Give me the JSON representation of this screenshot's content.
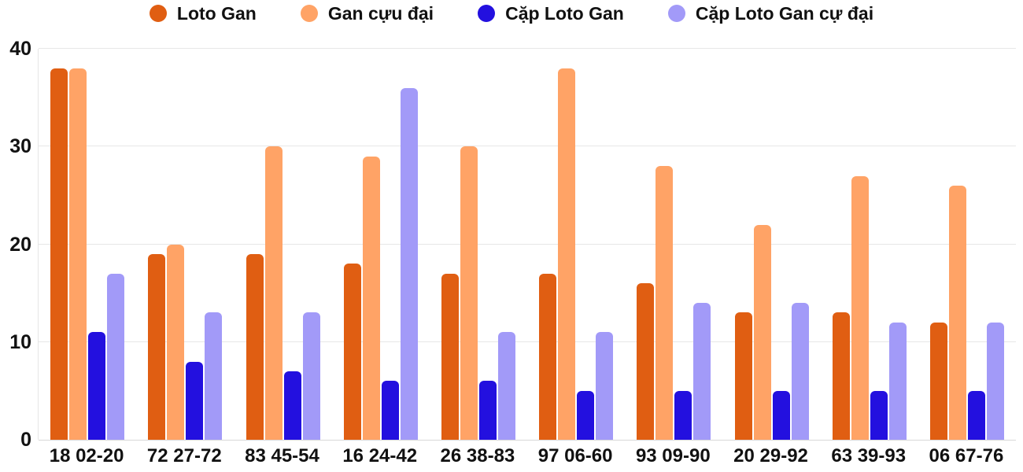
{
  "chart_data": {
    "type": "bar",
    "title": "",
    "categories": [
      "18 02-20",
      "72 27-72",
      "83 45-54",
      "16 24-42",
      "26 38-83",
      "97 06-60",
      "93 09-90",
      "20 29-92",
      "63 39-93",
      "06 67-76"
    ],
    "series": [
      {
        "name": "Loto Gan",
        "color": "#e05e12",
        "values": [
          38,
          19,
          19,
          18,
          17,
          17,
          16,
          13,
          13,
          12
        ]
      },
      {
        "name": "Gan cựu đại",
        "color": "#ffa366",
        "values": [
          38,
          20,
          30,
          29,
          30,
          38,
          28,
          22,
          27,
          26
        ]
      },
      {
        "name": "Cặp Loto Gan",
        "color": "#2310df",
        "values": [
          11,
          8,
          7,
          6,
          6,
          5,
          5,
          5,
          5,
          5
        ]
      },
      {
        "name": "Cặp Loto Gan cự đại",
        "color": "#a29af8",
        "values": [
          17,
          13,
          13,
          36,
          11,
          11,
          14,
          14,
          12,
          12
        ]
      }
    ],
    "xlabel": "",
    "ylabel": "",
    "ylim": [
      0,
      40
    ],
    "yticks": [
      0,
      10,
      20,
      30,
      40
    ],
    "grid": "horizontal",
    "legend_position": "top",
    "colors": {
      "text": "#111111",
      "gridline": "#e7e7e7",
      "baseline": "#d8d8d8",
      "background": "#ffffff"
    }
  }
}
